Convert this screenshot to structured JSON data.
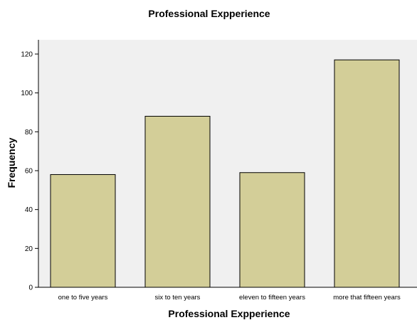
{
  "chart_data": {
    "type": "bar",
    "title": "Professional Expperience",
    "xlabel": "Professional Expperience",
    "ylabel": "Frequency",
    "categories": [
      "one to five years",
      "six to ten years",
      "eleven to fifteen years",
      "more that fifteen years"
    ],
    "values": [
      58,
      88,
      59,
      117
    ],
    "ylim": [
      0,
      120
    ],
    "yticks": [
      "0",
      "20",
      "40",
      "60",
      "80",
      "100",
      "120"
    ],
    "grid": false,
    "legend": "none",
    "colors": {
      "plot_background": "#f0f0f0",
      "bar_fill": "#d3ce98",
      "bar_stroke": "#000000"
    }
  }
}
